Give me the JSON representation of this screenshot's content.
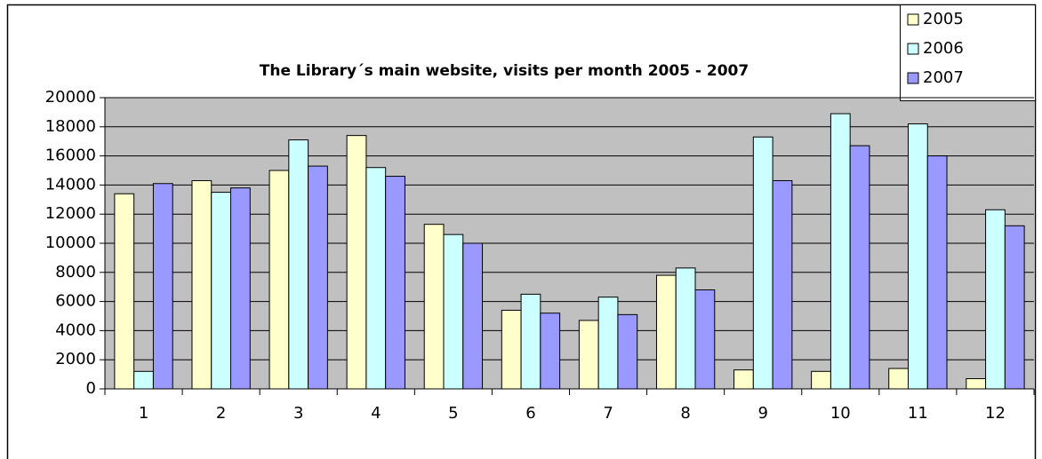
{
  "chart_data": {
    "type": "bar",
    "title": "The Library´s main website, visits per month 2005 - 2007",
    "categories": [
      "1",
      "2",
      "3",
      "4",
      "5",
      "6",
      "7",
      "8",
      "9",
      "10",
      "11",
      "12"
    ],
    "series": [
      {
        "name": "2005",
        "color": "#ffffcc",
        "values": [
          13400,
          14300,
          15000,
          17400,
          11300,
          5400,
          4700,
          7800,
          1300,
          1200,
          1400,
          700
        ]
      },
      {
        "name": "2006",
        "color": "#ccffff",
        "values": [
          1200,
          13500,
          17100,
          15200,
          10600,
          6500,
          6300,
          8300,
          17300,
          18900,
          18200,
          12300
        ]
      },
      {
        "name": "2007",
        "color": "#9999ff",
        "values": [
          14100,
          13800,
          15300,
          14600,
          10000,
          5200,
          5100,
          6800,
          14300,
          16700,
          16000,
          11200
        ]
      }
    ],
    "ylim": [
      0,
      20000
    ],
    "yticks": [
      0,
      2000,
      4000,
      6000,
      8000,
      10000,
      12000,
      14000,
      16000,
      18000,
      20000
    ],
    "grid": true,
    "legend": "top-right"
  }
}
